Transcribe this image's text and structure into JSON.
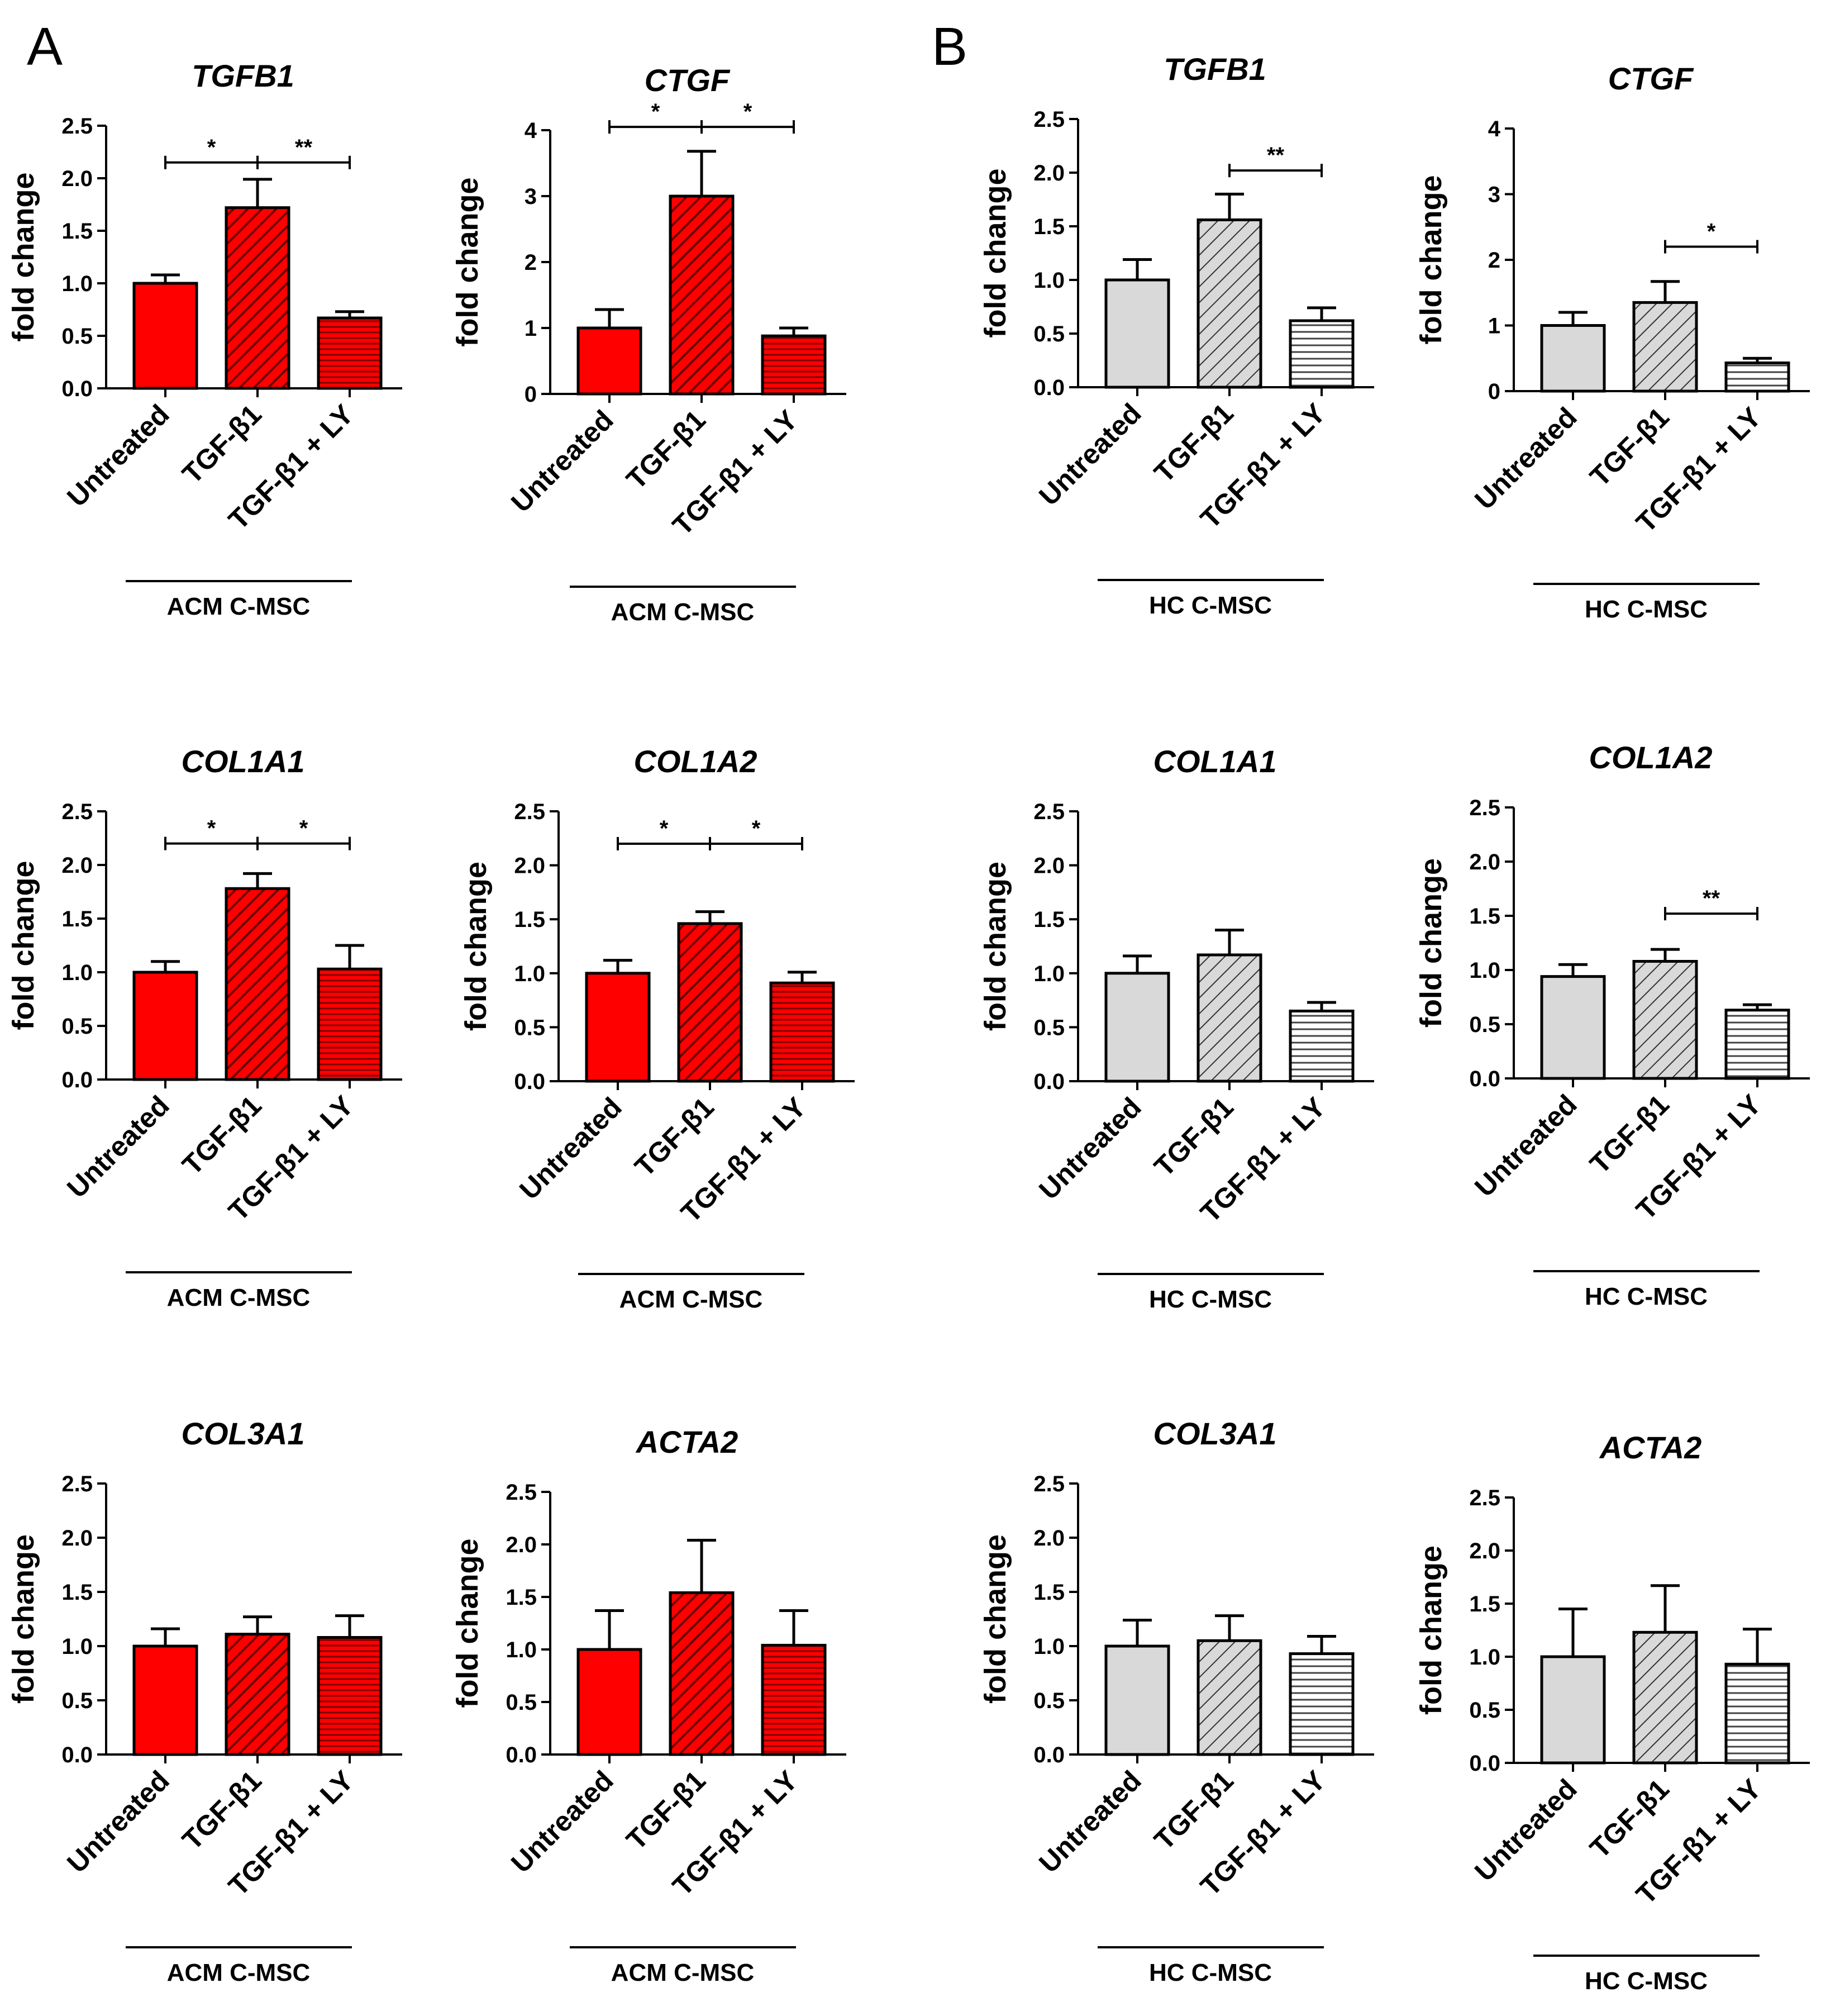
{
  "panels": [
    {
      "letter": "A",
      "name": "panel-a"
    },
    {
      "letter": "B",
      "name": "panel-b"
    }
  ],
  "colors": {
    "acm_fill": "#ff0000",
    "acm_hatch": "#7a0000",
    "hc_fill": "#d9d9d9",
    "hc_hatch": "#333333",
    "stroke": "#000000"
  },
  "chart_data": [
    {
      "type": "bar",
      "panel": "A",
      "title": "TGFB1",
      "ylabel": "fold change",
      "group": "ACM C-MSC",
      "categories": [
        "Untreated",
        "TGF-β1",
        "TGF-β1 + LY"
      ],
      "values": [
        1.0,
        1.72,
        0.67
      ],
      "errors": [
        0.08,
        0.27,
        0.06
      ],
      "ylim": [
        0,
        2.5
      ],
      "yticks": [
        "0.0",
        "0.5",
        "1.0",
        "1.5",
        "2.0",
        "2.5"
      ],
      "scheme": "acm",
      "sig": [
        {
          "from": 0,
          "to": 1,
          "label": "*",
          "y": 2.15
        },
        {
          "from": 1,
          "to": 2,
          "label": "**",
          "y": 2.15
        }
      ]
    },
    {
      "type": "bar",
      "panel": "A",
      "title": "CTGF",
      "ylabel": "fold change",
      "group": "ACM C-MSC",
      "categories": [
        "Untreated",
        "TGF-β1",
        "TGF-β1 + LY"
      ],
      "values": [
        1.0,
        3.0,
        0.88
      ],
      "errors": [
        0.28,
        0.68,
        0.12
      ],
      "ylim": [
        0,
        4
      ],
      "yticks": [
        "0",
        "1",
        "2",
        "3",
        "4"
      ],
      "scheme": "acm",
      "sig": [
        {
          "from": 0,
          "to": 1,
          "label": "*",
          "y": 4.05
        },
        {
          "from": 1,
          "to": 2,
          "label": "*",
          "y": 4.05
        }
      ]
    },
    {
      "type": "bar",
      "panel": "B",
      "title": "TGFB1",
      "ylabel": "fold change",
      "group": "HC C-MSC",
      "categories": [
        "Untreated",
        "TGF-β1",
        "TGF-β1 + LY"
      ],
      "values": [
        1.0,
        1.56,
        0.62
      ],
      "errors": [
        0.19,
        0.24,
        0.12
      ],
      "ylim": [
        0,
        2.5
      ],
      "yticks": [
        "0.0",
        "0.5",
        "1.0",
        "1.5",
        "2.0",
        "2.5"
      ],
      "scheme": "hc",
      "sig": [
        {
          "from": 1,
          "to": 2,
          "label": "**",
          "y": 2.02
        }
      ]
    },
    {
      "type": "bar",
      "panel": "B",
      "title": "CTGF",
      "ylabel": "fold change",
      "group": "HC C-MSC",
      "categories": [
        "Untreated",
        "TGF-β1",
        "TGF-β1 + LY"
      ],
      "values": [
        1.0,
        1.35,
        0.43
      ],
      "errors": [
        0.2,
        0.32,
        0.07
      ],
      "ylim": [
        0,
        4
      ],
      "yticks": [
        "0",
        "1",
        "2",
        "3",
        "4"
      ],
      "scheme": "hc",
      "sig": [
        {
          "from": 1,
          "to": 2,
          "label": "*",
          "y": 2.2
        }
      ]
    },
    {
      "type": "bar",
      "panel": "A",
      "title": "COL1A1",
      "ylabel": "fold change",
      "group": "ACM C-MSC",
      "categories": [
        "Untreated",
        "TGF-β1",
        "TGF-β1 + LY"
      ],
      "values": [
        1.0,
        1.78,
        1.03
      ],
      "errors": [
        0.1,
        0.14,
        0.22
      ],
      "ylim": [
        0,
        2.5
      ],
      "yticks": [
        "0.0",
        "0.5",
        "1.0",
        "1.5",
        "2.0",
        "2.5"
      ],
      "scheme": "acm",
      "sig": [
        {
          "from": 0,
          "to": 1,
          "label": "*",
          "y": 2.2
        },
        {
          "from": 1,
          "to": 2,
          "label": "*",
          "y": 2.2
        }
      ]
    },
    {
      "type": "bar",
      "panel": "A",
      "title": "COL1A2",
      "ylabel": "fold change",
      "group": "ACM C-MSC",
      "categories": [
        "Untreated",
        "TGF-β1",
        "TGF-β1 + LY"
      ],
      "values": [
        1.0,
        1.46,
        0.91
      ],
      "errors": [
        0.12,
        0.11,
        0.1
      ],
      "ylim": [
        0,
        2.5
      ],
      "yticks": [
        "0.0",
        "0.5",
        "1.0",
        "1.5",
        "2.0",
        "2.5"
      ],
      "scheme": "acm",
      "sig": [
        {
          "from": 0,
          "to": 1,
          "label": "*",
          "y": 2.2
        },
        {
          "from": 1,
          "to": 2,
          "label": "*",
          "y": 2.2
        }
      ]
    },
    {
      "type": "bar",
      "panel": "B",
      "title": "COL1A1",
      "ylabel": "fold change",
      "group": "HC C-MSC",
      "categories": [
        "Untreated",
        "TGF-β1",
        "TGF-β1 + LY"
      ],
      "values": [
        1.0,
        1.17,
        0.65
      ],
      "errors": [
        0.16,
        0.23,
        0.08
      ],
      "ylim": [
        0,
        2.5
      ],
      "yticks": [
        "0.0",
        "0.5",
        "1.0",
        "1.5",
        "2.0",
        "2.5"
      ],
      "scheme": "hc",
      "sig": []
    },
    {
      "type": "bar",
      "panel": "B",
      "title": "COL1A2",
      "ylabel": "fold change",
      "group": "HC C-MSC",
      "categories": [
        "Untreated",
        "TGF-β1",
        "TGF-β1 + LY"
      ],
      "values": [
        0.94,
        1.08,
        0.63
      ],
      "errors": [
        0.11,
        0.11,
        0.05
      ],
      "ylim": [
        0,
        2.5
      ],
      "yticks": [
        "0.0",
        "0.5",
        "1.0",
        "1.5",
        "2.0",
        "2.5"
      ],
      "scheme": "hc",
      "sig": [
        {
          "from": 1,
          "to": 2,
          "label": "**",
          "y": 1.52
        }
      ]
    },
    {
      "type": "bar",
      "panel": "A",
      "title": "COL3A1",
      "ylabel": "fold change",
      "group": "ACM C-MSC",
      "categories": [
        "Untreated",
        "TGF-β1",
        "TGF-β1 + LY"
      ],
      "values": [
        1.0,
        1.11,
        1.08
      ],
      "errors": [
        0.16,
        0.16,
        0.2
      ],
      "ylim": [
        0,
        2.5
      ],
      "yticks": [
        "0.0",
        "0.5",
        "1.0",
        "1.5",
        "2.0",
        "2.5"
      ],
      "scheme": "acm",
      "sig": []
    },
    {
      "type": "bar",
      "panel": "A",
      "title": "ACTA2",
      "ylabel": "fold change",
      "group": "ACM C-MSC",
      "categories": [
        "Untreated",
        "TGF-β1",
        "TGF-β1 + LY"
      ],
      "values": [
        1.0,
        1.54,
        1.04
      ],
      "errors": [
        0.37,
        0.5,
        0.33
      ],
      "ylim": [
        0,
        2.5
      ],
      "yticks": [
        "0.0",
        "0.5",
        "1.0",
        "1.5",
        "2.0",
        "2.5"
      ],
      "scheme": "acm",
      "sig": []
    },
    {
      "type": "bar",
      "panel": "B",
      "title": "COL3A1",
      "ylabel": "fold change",
      "group": "HC C-MSC",
      "categories": [
        "Untreated",
        "TGF-β1",
        "TGF-β1 + LY"
      ],
      "values": [
        1.0,
        1.05,
        0.93
      ],
      "errors": [
        0.24,
        0.23,
        0.16
      ],
      "ylim": [
        0,
        2.5
      ],
      "yticks": [
        "0.0",
        "0.5",
        "1.0",
        "1.5",
        "2.0",
        "2.5"
      ],
      "scheme": "hc",
      "sig": []
    },
    {
      "type": "bar",
      "panel": "B",
      "title": "ACTA2",
      "ylabel": "fold change",
      "group": "HC C-MSC",
      "categories": [
        "Untreated",
        "TGF-β1",
        "TGF-β1 + LY"
      ],
      "values": [
        1.0,
        1.23,
        0.93
      ],
      "errors": [
        0.45,
        0.44,
        0.33
      ],
      "ylim": [
        0,
        2.5
      ],
      "yticks": [
        "0.0",
        "0.5",
        "1.0",
        "1.5",
        "2.0",
        "2.5"
      ],
      "scheme": "hc",
      "sig": []
    }
  ]
}
